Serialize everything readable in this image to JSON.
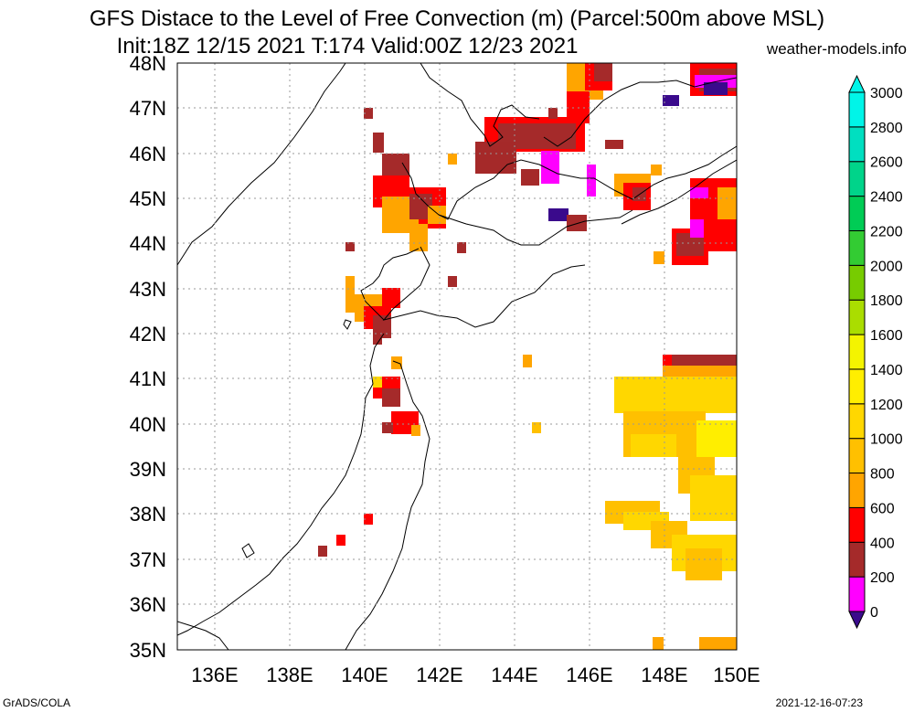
{
  "header": {
    "title_line1": "GFS Distace to the Level of Free Convection (m) (Parcel:500m above MSL)",
    "title_line2": "Init:18Z 12/15 2021 T:174 Valid:00Z 12/23 2021",
    "site": "weather-models.info"
  },
  "footer": {
    "left": "GrADS/COLA",
    "right": "2021-12-16-07:23"
  },
  "map": {
    "lat_labels": [
      "48N",
      "47N",
      "46N",
      "45N",
      "44N",
      "43N",
      "42N",
      "41N",
      "40N",
      "39N",
      "38N",
      "37N",
      "36N",
      "35N"
    ],
    "lon_labels": [
      "136E",
      "138E",
      "140E",
      "142E",
      "144E",
      "146E",
      "148E",
      "150E"
    ],
    "colors": {
      "coastline": "#000000",
      "gridline": "#999999",
      "frame": "#000000"
    }
  },
  "colorbar": {
    "labels": [
      "0",
      "200",
      "400",
      "600",
      "800",
      "1000",
      "1200",
      "1400",
      "1600",
      "1800",
      "2000",
      "2200",
      "2400",
      "2600",
      "2800",
      "3000"
    ],
    "colors": [
      "#3a0a8c",
      "#ff00ff",
      "#a52a2a",
      "#ff0000",
      "#ffa500",
      "#ffc000",
      "#ffd700",
      "#ffee00",
      "#f4f400",
      "#aadd00",
      "#77cc00",
      "#33cc33",
      "#00cc55",
      "#00d48a",
      "#00dfc0",
      "#00f5e8"
    ]
  }
}
